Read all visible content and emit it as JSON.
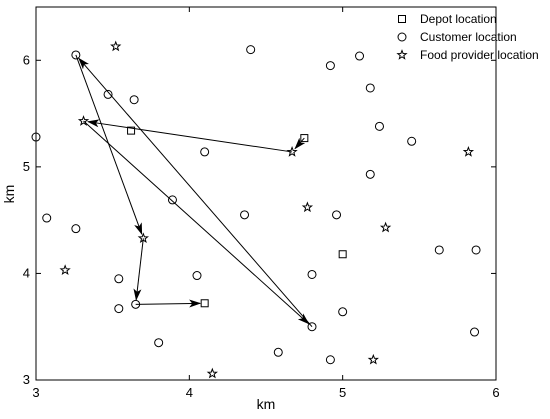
{
  "chart_data": {
    "type": "scatter",
    "title": "",
    "xlabel": "km",
    "ylabel": "km",
    "xlim": [
      3,
      6
    ],
    "ylim": [
      3,
      6.5
    ],
    "x_ticks": [
      "3",
      "4",
      "5",
      "6"
    ],
    "y_ticks": [
      "3",
      "4",
      "5",
      "6"
    ],
    "grid": false,
    "legend_position": "top-right",
    "series": [
      {
        "name": "Depot location",
        "marker": "square",
        "points": [
          [
            3.62,
            5.34
          ],
          [
            4.75,
            5.27
          ],
          [
            4.1,
            3.72
          ],
          [
            5.0,
            4.18
          ]
        ]
      },
      {
        "name": "Customer location",
        "marker": "circle",
        "points": [
          [
            3.26,
            6.05
          ],
          [
            3.47,
            5.68
          ],
          [
            3.64,
            5.63
          ],
          [
            3.0,
            5.28
          ],
          [
            4.1,
            5.14
          ],
          [
            4.4,
            6.1
          ],
          [
            4.92,
            5.95
          ],
          [
            5.11,
            6.04
          ],
          [
            5.18,
            5.74
          ],
          [
            5.24,
            5.38
          ],
          [
            5.45,
            5.24
          ],
          [
            5.18,
            4.93
          ],
          [
            3.07,
            4.52
          ],
          [
            3.26,
            4.42
          ],
          [
            3.89,
            4.69
          ],
          [
            4.36,
            4.55
          ],
          [
            4.96,
            4.55
          ],
          [
            3.54,
            3.95
          ],
          [
            4.05,
            3.98
          ],
          [
            4.8,
            3.99
          ],
          [
            3.54,
            3.67
          ],
          [
            3.65,
            3.71
          ],
          [
            4.8,
            3.5
          ],
          [
            5.0,
            3.64
          ],
          [
            3.8,
            3.35
          ],
          [
            4.58,
            3.26
          ],
          [
            4.92,
            3.19
          ],
          [
            5.63,
            4.22
          ],
          [
            5.87,
            4.22
          ],
          [
            5.86,
            3.45
          ]
        ]
      },
      {
        "name": "Food provider location",
        "marker": "star",
        "points": [
          [
            3.52,
            6.13
          ],
          [
            3.31,
            5.43
          ],
          [
            4.67,
            5.14
          ],
          [
            5.82,
            5.14
          ],
          [
            4.77,
            4.62
          ],
          [
            5.28,
            4.43
          ],
          [
            3.7,
            4.33
          ],
          [
            3.19,
            4.03
          ],
          [
            4.15,
            3.06
          ],
          [
            5.2,
            3.19
          ]
        ]
      }
    ],
    "routes": [
      [
        [
          4.75,
          5.27
        ],
        [
          4.67,
          5.14
        ]
      ],
      [
        [
          4.67,
          5.14
        ],
        [
          3.31,
          5.43
        ]
      ],
      [
        [
          3.31,
          5.43
        ],
        [
          4.8,
          3.5
        ]
      ],
      [
        [
          4.8,
          3.5
        ],
        [
          3.26,
          6.05
        ]
      ],
      [
        [
          3.26,
          6.05
        ],
        [
          3.7,
          4.33
        ]
      ],
      [
        [
          3.7,
          4.33
        ],
        [
          3.65,
          3.71
        ]
      ],
      [
        [
          3.65,
          3.71
        ],
        [
          4.1,
          3.72
        ]
      ]
    ]
  }
}
